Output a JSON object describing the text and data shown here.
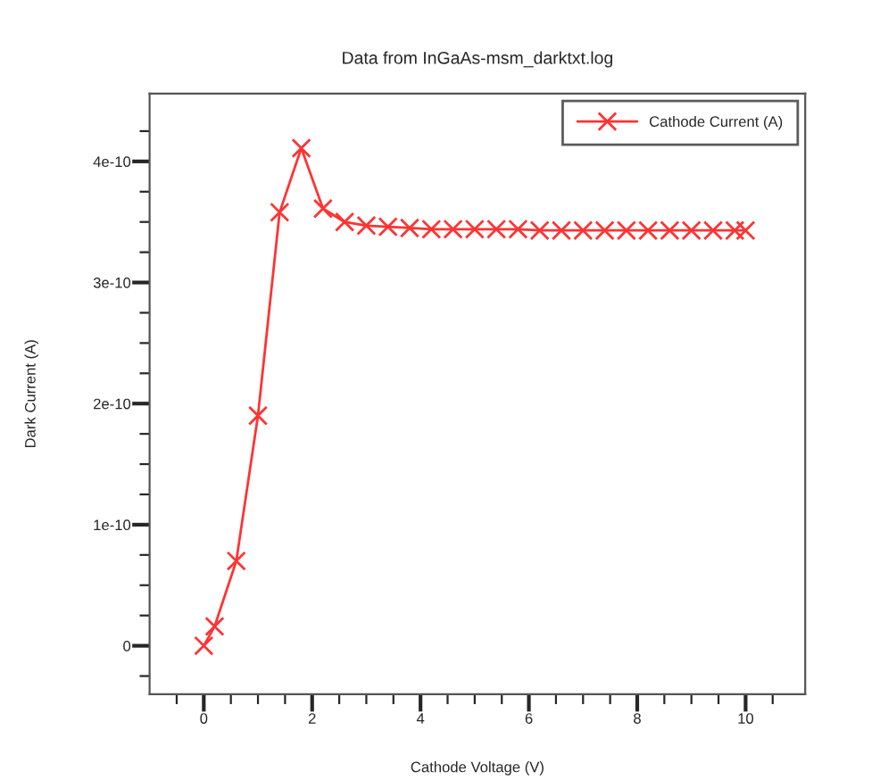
{
  "chart_data": {
    "type": "line",
    "subtitle": "Data from InGaAs-msm_darktxt.log",
    "xlabel": "Cathode Voltage (V)",
    "ylabel": "Dark Current (A)",
    "x": [
      0,
      0.2,
      0.6,
      1.0,
      1.4,
      1.8,
      2.2,
      2.6,
      3.0,
      3.4,
      3.8,
      4.2,
      4.6,
      5.0,
      5.4,
      5.8,
      6.2,
      6.6,
      7.0,
      7.4,
      7.8,
      8.2,
      8.6,
      9.0,
      9.4,
      9.8,
      10.0
    ],
    "series": [
      {
        "name": "Cathode Current (A)",
        "color": "#ff3333",
        "values": [
          0,
          1.6e-11,
          7e-11,
          1.9e-10,
          3.58e-10,
          4.11e-10,
          3.61e-10,
          3.5e-10,
          3.47e-10,
          3.46e-10,
          3.45e-10,
          3.44e-10,
          3.44e-10,
          3.44e-10,
          3.44e-10,
          3.44e-10,
          3.43e-10,
          3.43e-10,
          3.43e-10,
          3.43e-10,
          3.43e-10,
          3.43e-10,
          3.43e-10,
          3.43e-10,
          3.43e-10,
          3.43e-10,
          3.43e-10
        ]
      }
    ],
    "xlim": [
      -1,
      11.1
    ],
    "ylim": [
      -4e-11,
      4.56e-10
    ],
    "xticks": [
      {
        "value": -0.5,
        "label": null
      },
      0,
      {
        "value": 0.5,
        "label": null
      },
      {
        "value": 1,
        "label": null
      },
      {
        "value": 1.5,
        "label": null
      },
      2,
      {
        "value": 2.5,
        "label": null
      },
      {
        "value": 3,
        "label": null
      },
      {
        "value": 3.5,
        "label": null
      },
      4,
      {
        "value": 4.5,
        "label": null
      },
      {
        "value": 5,
        "label": null
      },
      {
        "value": 5.5,
        "label": null
      },
      6,
      {
        "value": 6.5,
        "label": null
      },
      {
        "value": 7,
        "label": null
      },
      {
        "value": 7.5,
        "label": null
      },
      8,
      {
        "value": 8.5,
        "label": null
      },
      {
        "value": 9,
        "label": null
      },
      {
        "value": 9.5,
        "label": null
      },
      10,
      {
        "value": 10.5,
        "label": null
      }
    ],
    "yticks": [
      {
        "value": -2.5e-11,
        "label": null
      },
      0,
      {
        "value": 2.5e-11,
        "label": null
      },
      {
        "value": 5e-11,
        "label": null
      },
      {
        "value": 7.5e-11,
        "label": null
      },
      {
        "value": 1e-10,
        "label": "1e-10"
      },
      {
        "value": 1.25e-10,
        "label": null
      },
      {
        "value": 1.5e-10,
        "label": null
      },
      {
        "value": 1.75e-10,
        "label": null
      },
      {
        "value": 2e-10,
        "label": "2e-10"
      },
      {
        "value": 2.25e-10,
        "label": null
      },
      {
        "value": 2.5e-10,
        "label": null
      },
      {
        "value": 2.75e-10,
        "label": null
      },
      {
        "value": 3e-10,
        "label": "3e-10"
      },
      {
        "value": 3.25e-10,
        "label": null
      },
      {
        "value": 3.5e-10,
        "label": null
      },
      {
        "value": 3.75e-10,
        "label": null
      },
      {
        "value": 4e-10,
        "label": "4e-10"
      },
      {
        "value": 4.25e-10,
        "label": null
      }
    ],
    "marker": "cross",
    "line_style": "solid",
    "legend": "top right",
    "grid": false
  }
}
